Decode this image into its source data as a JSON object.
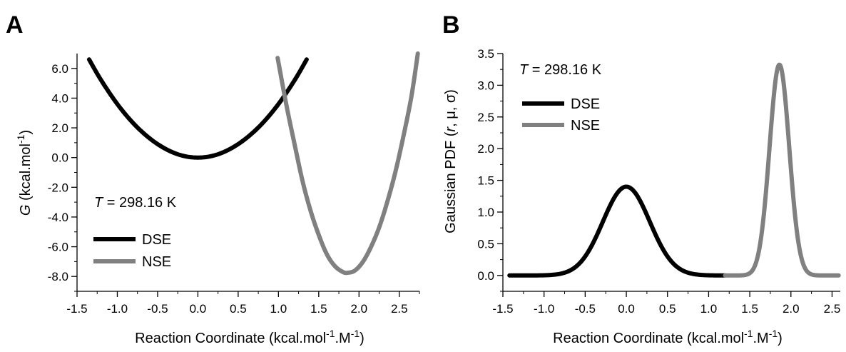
{
  "chart_data": [
    {
      "panel": "A",
      "type": "line",
      "ylabel": "G (kcal.mol-1)",
      "xlabel": "Reaction Coordinate (kcal.mol-1.M-1)",
      "xlim": [
        -1.5,
        2.75
      ],
      "ylim": [
        -9.0,
        7.0
      ],
      "xticks": [
        -1.5,
        -1.0,
        -0.5,
        0.0,
        0.5,
        1.0,
        1.5,
        2.0,
        2.5
      ],
      "xtick_labels": [
        "-1.5",
        "-1.0",
        "-0.5",
        "0.0",
        "0.5",
        "1.0",
        "1.5",
        "2.0",
        "2.5"
      ],
      "yticks": [
        6.0,
        4.0,
        2.0,
        0.0,
        -2.0,
        -4.0,
        -6.0,
        -8.0
      ],
      "ytick_labels": [
        "6.0",
        "4.0",
        "2.0",
        "0.0",
        "-2.0",
        "-4.0",
        "-6.0",
        "-8.0"
      ],
      "annotation": "T = 298.16 K",
      "legend": "lower-left",
      "grid": false,
      "series": [
        {
          "name": "DSE",
          "color": "#000000",
          "x": [
            -1.35,
            -1.2,
            -1.0,
            -0.8,
            -0.6,
            -0.4,
            -0.2,
            0.0,
            0.2,
            0.4,
            0.6,
            0.8,
            1.0,
            1.2,
            1.35
          ],
          "y": [
            6.6,
            5.2,
            3.6,
            2.3,
            1.3,
            0.58,
            0.14,
            0.0,
            0.14,
            0.58,
            1.3,
            2.3,
            3.6,
            5.2,
            6.6
          ]
        },
        {
          "name": "NSE",
          "color": "#808080",
          "x": [
            0.99,
            1.1,
            1.2,
            1.3,
            1.4,
            1.5,
            1.6,
            1.7,
            1.8,
            1.86,
            1.95,
            2.05,
            2.15,
            2.25,
            2.35,
            2.45,
            2.55,
            2.65,
            2.73
          ],
          "y": [
            6.7,
            3.5,
            0.9,
            -1.6,
            -3.6,
            -5.2,
            -6.5,
            -7.3,
            -7.7,
            -7.75,
            -7.6,
            -7.0,
            -6.0,
            -4.7,
            -3.0,
            -1.0,
            1.4,
            4.1,
            7.0
          ]
        }
      ]
    },
    {
      "panel": "B",
      "type": "line",
      "ylabel": "Gaussian PDF (r, μ, σ)",
      "xlabel": "Reaction Coordinate (kcal.mol-1.M-1)",
      "xlim": [
        -1.5,
        2.6
      ],
      "ylim": [
        -0.25,
        3.5
      ],
      "xticks": [
        -1.5,
        -1.0,
        -0.5,
        0.0,
        0.5,
        1.0,
        1.5,
        2.0,
        2.5
      ],
      "xtick_labels": [
        "-1.5",
        "-1.0",
        "-0.5",
        "0.0",
        "0.5",
        "1.0",
        "1.5",
        "2.0",
        "2.5"
      ],
      "yticks": [
        3.5,
        3.0,
        2.5,
        2.0,
        1.5,
        1.0,
        0.5,
        0.0
      ],
      "ytick_labels": [
        "3.5",
        "3.0",
        "2.5",
        "2.0",
        "1.5",
        "1.0",
        "0.5",
        "0.0"
      ],
      "annotation": "T = 298.16 K",
      "legend": "upper-left",
      "grid": false,
      "series": [
        {
          "name": "DSE",
          "color": "#000000",
          "gaussian": {
            "mu": 0.0,
            "sigma": 0.285
          },
          "x_range": [
            -1.42,
            1.2
          ]
        },
        {
          "name": "NSE",
          "color": "#808080",
          "gaussian": {
            "mu": 1.86,
            "sigma": 0.12
          },
          "x_range": [
            1.2,
            2.58
          ]
        }
      ]
    }
  ],
  "panels": {
    "a": {
      "letter": "A",
      "ylabel_italic": "G",
      "ylabel_rest": " (kcal.mol",
      "ylabel_sup": "-1",
      "ylabel_close": ")",
      "annot_italic": "T",
      "annot_rest": " = 298.16 K",
      "legend_dse": "DSE",
      "legend_nse": "NSE",
      "xlabel_main": "Reaction Coordinate (kcal.mol",
      "xlabel_sup1": "-1",
      "xlabel_mid": ".M",
      "xlabel_sup2": "-1",
      "xlabel_close": ")"
    },
    "b": {
      "letter": "B",
      "ylabel_start": "Gaussian PDF (",
      "ylabel_r": "r",
      "ylabel_end": ", μ, σ)",
      "annot_italic": "T",
      "annot_rest": " = 298.16 K",
      "legend_dse": "DSE",
      "legend_nse": "NSE",
      "xlabel_main": "Reaction Coordinate (kcal.mol",
      "xlabel_sup1": "-1",
      "xlabel_mid": ".M",
      "xlabel_sup2": "-1",
      "xlabel_close": ")"
    }
  }
}
